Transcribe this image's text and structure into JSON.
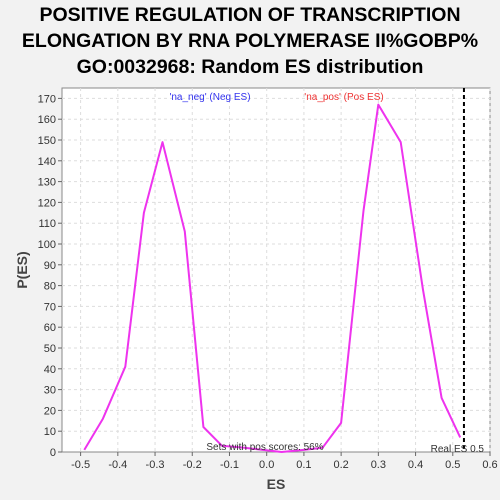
{
  "chart_data": {
    "type": "line",
    "title_lines": [
      "POSITIVE REGULATION OF TRANSCRIPTION",
      "ELONGATION BY RNA POLYMERASE II%GOBP%",
      "GO:0032968: Random ES distribution"
    ],
    "xlabel": "ES",
    "ylabel": "P(ES)",
    "xlim": [
      -0.55,
      0.6
    ],
    "ylim": [
      0,
      175
    ],
    "xticks": [
      -0.5,
      -0.4,
      -0.3,
      -0.2,
      -0.1,
      0.0,
      0.1,
      0.2,
      0.3,
      0.4,
      0.5,
      0.6
    ],
    "xtick_labels": [
      "-0.5",
      "-0.4",
      "-0.3",
      "-0.2",
      "-0.1",
      "0.0",
      "0.1",
      "0.2",
      "0.3",
      "0.4",
      "0.5",
      "0.6"
    ],
    "yticks": [
      0,
      10,
      20,
      30,
      40,
      50,
      60,
      70,
      80,
      90,
      100,
      110,
      120,
      130,
      140,
      150,
      160,
      170
    ],
    "grid": true,
    "series": [
      {
        "color": "#ee33ee",
        "x": [
          -0.49,
          -0.44,
          -0.38,
          -0.33,
          -0.28,
          -0.22,
          -0.17,
          -0.12,
          -0.06,
          -0.01,
          0.04,
          0.1,
          0.15,
          0.2,
          0.26,
          0.3,
          0.36,
          0.42,
          0.47,
          0.52
        ],
        "y": [
          1,
          16,
          41,
          115,
          149,
          106,
          12,
          3,
          2,
          1,
          0,
          1,
          2,
          14,
          116,
          167,
          149,
          78,
          26,
          7
        ]
      }
    ],
    "legend": {
      "neg_label": "'na_neg' (Neg ES)",
      "pos_label": "'na_pos' (Pos ES)",
      "neg_color": "#3333ee",
      "pos_color": "#ee3333"
    },
    "real_es": {
      "value": 0.53,
      "label": "Real ES 0.5"
    },
    "annotation": "Sets with pos scores: 56%"
  }
}
